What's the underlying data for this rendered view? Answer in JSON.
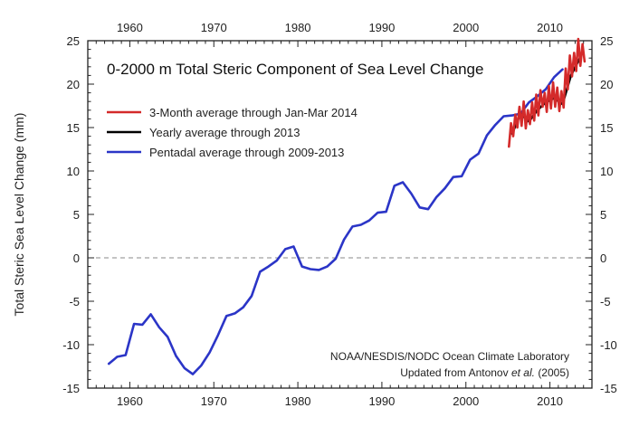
{
  "chart_data": {
    "type": "line",
    "title": "0-2000 m Total Steric Component of Sea Level Change",
    "ylabel": "Total Steric Sea Level Change (mm)",
    "xlabel": "",
    "xlim": [
      1955,
      2015
    ],
    "ylim": [
      -15,
      25
    ],
    "x_ticks": [
      "1960",
      "1970",
      "1980",
      "1990",
      "2000",
      "2010"
    ],
    "x_tick_values": [
      1960,
      1970,
      1980,
      1990,
      2000,
      2010
    ],
    "y_ticks": [
      "-15",
      "-10",
      "-5",
      "0",
      "5",
      "10",
      "15",
      "20",
      "25"
    ],
    "y_tick_values": [
      -15,
      -10,
      -5,
      0,
      5,
      10,
      15,
      20,
      25
    ],
    "zero_line": "dashed",
    "grid": false,
    "legend_position": "top-left",
    "series": [
      {
        "name": "Pentadal average through 2009-2013",
        "color": "#2b35c7",
        "x": [
          1957.5,
          1958.5,
          1959.5,
          1960.5,
          1961.5,
          1962.5,
          1963.5,
          1964.5,
          1965.5,
          1966.5,
          1967.5,
          1968.5,
          1969.5,
          1970.5,
          1971.5,
          1972.5,
          1973.5,
          1974.5,
          1975.5,
          1976.5,
          1977.5,
          1978.5,
          1979.5,
          1980.5,
          1981.5,
          1982.5,
          1983.5,
          1984.5,
          1985.5,
          1986.5,
          1987.5,
          1988.5,
          1989.5,
          1990.5,
          1991.5,
          1992.5,
          1993.5,
          1994.5,
          1995.5,
          1996.5,
          1997.5,
          1998.5,
          1999.5,
          2000.5,
          2001.5,
          2002.5,
          2003.5,
          2004.5,
          2005.5,
          2006.5,
          2007.5,
          2008.5,
          2009.5,
          2010.5,
          2011.5
        ],
        "values": [
          -12.2,
          -11.4,
          -11.2,
          -7.6,
          -7.7,
          -6.5,
          -8.0,
          -9.1,
          -11.3,
          -12.7,
          -13.4,
          -12.4,
          -10.9,
          -8.9,
          -6.7,
          -6.4,
          -5.7,
          -4.4,
          -1.6,
          -1.0,
          -0.3,
          1.0,
          1.3,
          -1.0,
          -1.3,
          -1.4,
          -1.0,
          -0.1,
          2.1,
          3.6,
          3.8,
          4.3,
          5.2,
          5.3,
          8.3,
          8.7,
          7.4,
          5.8,
          5.6,
          7.0,
          8.0,
          9.3,
          9.4,
          11.3,
          12.0,
          14.1,
          15.3,
          16.3,
          16.4,
          16.6,
          17.9,
          18.6,
          19.4,
          20.8,
          21.7
        ]
      },
      {
        "name": "Yearly average through 2013",
        "color": "#000000",
        "x": [
          2005.5,
          2006.5,
          2007.5,
          2008.5,
          2009.5,
          2010.5,
          2011.5,
          2012.5,
          2013.5
        ],
        "values": [
          14.3,
          16.6,
          15.7,
          17.0,
          17.9,
          18.4,
          17.7,
          21.0,
          22.9
        ]
      },
      {
        "name": "3-Month average through Jan-Mar 2014",
        "color": "#d42a2a",
        "x": [
          2005.125,
          2005.375,
          2005.625,
          2005.875,
          2006.125,
          2006.375,
          2006.625,
          2006.875,
          2007.125,
          2007.375,
          2007.625,
          2007.875,
          2008.125,
          2008.375,
          2008.625,
          2008.875,
          2009.125,
          2009.375,
          2009.625,
          2009.875,
          2010.125,
          2010.375,
          2010.625,
          2010.875,
          2011.125,
          2011.375,
          2011.625,
          2011.875,
          2012.125,
          2012.375,
          2012.625,
          2012.875,
          2013.125,
          2013.375,
          2013.625,
          2013.875,
          2014.125
        ],
        "values": [
          12.8,
          15.5,
          14.0,
          16.5,
          15.0,
          17.4,
          15.2,
          18.0,
          14.9,
          17.0,
          15.4,
          17.9,
          15.8,
          18.8,
          16.4,
          19.3,
          17.4,
          19.0,
          16.8,
          19.8,
          17.2,
          20.2,
          17.4,
          19.6,
          16.9,
          19.2,
          17.3,
          21.8,
          19.4,
          23.3,
          20.9,
          23.6,
          21.5,
          25.2,
          22.1,
          24.6,
          22.6
        ]
      }
    ],
    "legend": [
      "3-Month average through Jan-Mar 2014",
      "Yearly average through 2013",
      "Pentadal average through 2009-2013"
    ],
    "annotations": {
      "line1": "NOAA/NESDIS/NODC Ocean Climate Laboratory",
      "line2_prefix": "Updated from Antonov",
      "line2_italic": "et al.",
      "line2_suffix": "(2005)"
    }
  }
}
